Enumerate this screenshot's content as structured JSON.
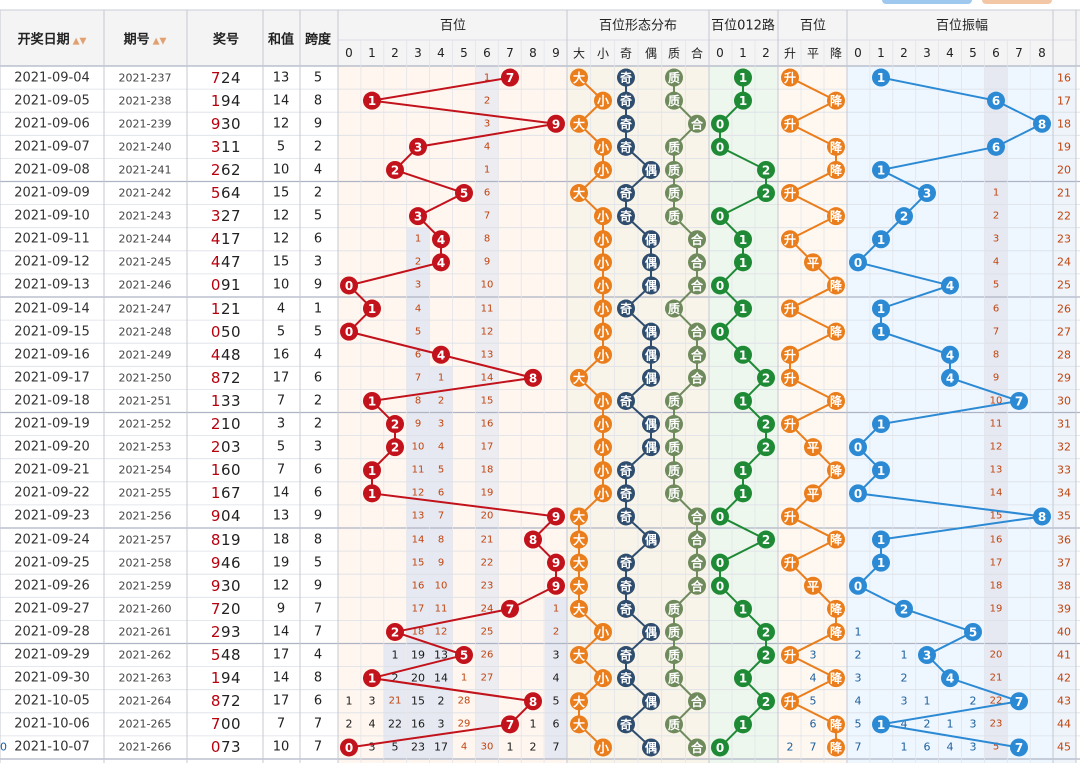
{
  "headers": {
    "date": "开奖日期",
    "issue": "期号",
    "prize": "奖号",
    "sum": "和值",
    "span": "跨度",
    "hundreds": "百位",
    "form": "百位形态分布",
    "road": "百位012路",
    "trend": "百位",
    "amp": "百位振幅"
  },
  "digits": [
    "0",
    "1",
    "2",
    "3",
    "4",
    "5",
    "6",
    "7",
    "8",
    "9"
  ],
  "form_labels": [
    "大",
    "小",
    "奇",
    "偶",
    "质",
    "合"
  ],
  "road_labels": [
    "0",
    "1",
    "2"
  ],
  "trend_labels": [
    "升",
    "平",
    "降"
  ],
  "colors": {
    "hundreds_ball": "#c2121b",
    "form_bigsmall": "#ea7d1c",
    "form_oddeven": "#2f4d6e",
    "form_primecomp": "#6f8a5c",
    "road_ball": "#1f8a35",
    "trend_ball": "#ea7d1c",
    "amp_ball": "#2c8ad4",
    "hundreds_bg": "#fff6ef",
    "form_bg": "#f9f4ea",
    "road_bg": "#eef7ee",
    "amp_bg": "#eef7ff"
  },
  "chart_data": {
    "type": "table",
    "rows": [
      {
        "date": "2021-09-04",
        "issue": "2021-237",
        "prize": "724",
        "sum": "13",
        "span": "5",
        "idx": "16"
      },
      {
        "date": "2021-09-05",
        "issue": "2021-238",
        "prize": "194",
        "sum": "14",
        "span": "8",
        "idx": "17"
      },
      {
        "date": "2021-09-06",
        "issue": "2021-239",
        "prize": "930",
        "sum": "12",
        "span": "9",
        "idx": "18"
      },
      {
        "date": "2021-09-07",
        "issue": "2021-240",
        "prize": "311",
        "sum": "5",
        "span": "2",
        "idx": "19"
      },
      {
        "date": "2021-09-08",
        "issue": "2021-241",
        "prize": "262",
        "sum": "10",
        "span": "4",
        "idx": "20"
      },
      {
        "date": "2021-09-09",
        "issue": "2021-242",
        "prize": "564",
        "sum": "15",
        "span": "2",
        "idx": "21"
      },
      {
        "date": "2021-09-10",
        "issue": "2021-243",
        "prize": "327",
        "sum": "12",
        "span": "5",
        "idx": "22"
      },
      {
        "date": "2021-09-11",
        "issue": "2021-244",
        "prize": "417",
        "sum": "12",
        "span": "6",
        "idx": "23"
      },
      {
        "date": "2021-09-12",
        "issue": "2021-245",
        "prize": "447",
        "sum": "15",
        "span": "3",
        "idx": "24"
      },
      {
        "date": "2021-09-13",
        "issue": "2021-246",
        "prize": "091",
        "sum": "10",
        "span": "9",
        "idx": "25"
      },
      {
        "date": "2021-09-14",
        "issue": "2021-247",
        "prize": "121",
        "sum": "4",
        "span": "1",
        "idx": "26"
      },
      {
        "date": "2021-09-15",
        "issue": "2021-248",
        "prize": "050",
        "sum": "5",
        "span": "5",
        "idx": "27"
      },
      {
        "date": "2021-09-16",
        "issue": "2021-249",
        "prize": "448",
        "sum": "16",
        "span": "4",
        "idx": "28"
      },
      {
        "date": "2021-09-17",
        "issue": "2021-250",
        "prize": "872",
        "sum": "17",
        "span": "6",
        "idx": "29"
      },
      {
        "date": "2021-09-18",
        "issue": "2021-251",
        "prize": "133",
        "sum": "7",
        "span": "2",
        "idx": "30"
      },
      {
        "date": "2021-09-19",
        "issue": "2021-252",
        "prize": "210",
        "sum": "3",
        "span": "2",
        "idx": "31"
      },
      {
        "date": "2021-09-20",
        "issue": "2021-253",
        "prize": "203",
        "sum": "5",
        "span": "3",
        "idx": "32"
      },
      {
        "date": "2021-09-21",
        "issue": "2021-254",
        "prize": "160",
        "sum": "7",
        "span": "6",
        "idx": "33"
      },
      {
        "date": "2021-09-22",
        "issue": "2021-255",
        "prize": "167",
        "sum": "14",
        "span": "6",
        "idx": "34"
      },
      {
        "date": "2021-09-23",
        "issue": "2021-256",
        "prize": "904",
        "sum": "13",
        "span": "9",
        "idx": "35"
      },
      {
        "date": "2021-09-24",
        "issue": "2021-257",
        "prize": "819",
        "sum": "18",
        "span": "8",
        "idx": "36"
      },
      {
        "date": "2021-09-25",
        "issue": "2021-258",
        "prize": "946",
        "sum": "19",
        "span": "5",
        "idx": "37"
      },
      {
        "date": "2021-09-26",
        "issue": "2021-259",
        "prize": "930",
        "sum": "12",
        "span": "9",
        "idx": "38"
      },
      {
        "date": "2021-09-27",
        "issue": "2021-260",
        "prize": "720",
        "sum": "9",
        "span": "7",
        "idx": "39"
      },
      {
        "date": "2021-09-28",
        "issue": "2021-261",
        "prize": "293",
        "sum": "14",
        "span": "7",
        "idx": "40"
      },
      {
        "date": "2021-09-29",
        "issue": "2021-262",
        "prize": "548",
        "sum": "17",
        "span": "4",
        "idx": "41"
      },
      {
        "date": "2021-09-30",
        "issue": "2021-263",
        "prize": "194",
        "sum": "14",
        "span": "8",
        "idx": "42"
      },
      {
        "date": "2021-10-05",
        "issue": "2021-264",
        "prize": "872",
        "sum": "17",
        "span": "6",
        "idx": "43"
      },
      {
        "date": "2021-10-06",
        "issue": "2021-265",
        "prize": "700",
        "sum": "7",
        "span": "7",
        "idx": "44"
      },
      {
        "date": "2021-10-07",
        "issue": "2021-266",
        "prize": "073",
        "sum": "10",
        "span": "7",
        "idx": "45"
      }
    ],
    "hundreds": [
      7,
      1,
      9,
      3,
      2,
      5,
      3,
      4,
      4,
      0,
      1,
      0,
      4,
      8,
      1,
      2,
      2,
      1,
      1,
      9,
      8,
      9,
      9,
      7,
      2,
      5,
      1,
      8,
      7,
      0
    ],
    "hundreds_miss": [
      [
        [
          6,
          "1"
        ]
      ],
      [
        [
          6,
          "2"
        ]
      ],
      [
        [
          6,
          "3"
        ]
      ],
      [
        [
          6,
          "4"
        ]
      ],
      [
        [
          6,
          "1"
        ]
      ],
      [
        [
          6,
          "6"
        ]
      ],
      [
        [
          6,
          "7"
        ]
      ],
      [
        [
          3,
          "1"
        ],
        [
          6,
          "8"
        ]
      ],
      [
        [
          3,
          "2"
        ],
        [
          6,
          "9"
        ]
      ],
      [
        [
          3,
          "3"
        ],
        [
          6,
          "10"
        ]
      ],
      [
        [
          3,
          "4"
        ],
        [
          6,
          "11"
        ]
      ],
      [
        [
          3,
          "5"
        ],
        [
          6,
          "12"
        ]
      ],
      [
        [
          3,
          "6"
        ],
        [
          6,
          "13"
        ]
      ],
      [
        [
          3,
          "7"
        ],
        [
          4,
          "1"
        ],
        [
          6,
          "14"
        ]
      ],
      [
        [
          3,
          "8"
        ],
        [
          4,
          "2"
        ],
        [
          6,
          "15"
        ]
      ],
      [
        [
          3,
          "9"
        ],
        [
          4,
          "3"
        ],
        [
          6,
          "16"
        ]
      ],
      [
        [
          3,
          "10"
        ],
        [
          4,
          "4"
        ],
        [
          6,
          "17"
        ]
      ],
      [
        [
          3,
          "11"
        ],
        [
          4,
          "5"
        ],
        [
          6,
          "18"
        ]
      ],
      [
        [
          3,
          "12"
        ],
        [
          4,
          "6"
        ],
        [
          6,
          "19"
        ]
      ],
      [
        [
          3,
          "13"
        ],
        [
          4,
          "7"
        ],
        [
          6,
          "20"
        ]
      ],
      [
        [
          3,
          "14"
        ],
        [
          4,
          "8"
        ],
        [
          6,
          "21"
        ]
      ],
      [
        [
          3,
          "15"
        ],
        [
          4,
          "9"
        ],
        [
          6,
          "22"
        ]
      ],
      [
        [
          3,
          "16"
        ],
        [
          4,
          "10"
        ],
        [
          6,
          "23"
        ]
      ],
      [
        [
          3,
          "17"
        ],
        [
          4,
          "11"
        ],
        [
          6,
          "24"
        ],
        [
          9,
          "1"
        ]
      ],
      [
        [
          3,
          "18"
        ],
        [
          4,
          "12"
        ],
        [
          6,
          "25"
        ],
        [
          9,
          "2"
        ]
      ],
      [
        [
          2,
          "1"
        ],
        [
          3,
          "19"
        ],
        [
          4,
          "13"
        ],
        [
          6,
          "26"
        ],
        [
          9,
          "3"
        ]
      ],
      [
        [
          2,
          "2"
        ],
        [
          3,
          "20"
        ],
        [
          4,
          "14"
        ],
        [
          5,
          "1"
        ],
        [
          6,
          "27"
        ],
        [
          9,
          "4"
        ]
      ],
      [
        [
          0,
          "1"
        ],
        [
          1,
          "3"
        ],
        [
          2,
          "21"
        ],
        [
          3,
          "15"
        ],
        [
          4,
          "2"
        ],
        [
          5,
          "28"
        ],
        [
          9,
          "5"
        ]
      ],
      [
        [
          0,
          "2"
        ],
        [
          1,
          "4"
        ],
        [
          2,
          "22"
        ],
        [
          3,
          "16"
        ],
        [
          4,
          "3"
        ],
        [
          5,
          "29"
        ],
        [
          8,
          "1"
        ],
        [
          9,
          "6"
        ]
      ],
      [
        [
          1,
          "3"
        ],
        [
          2,
          "5"
        ],
        [
          3,
          "23"
        ],
        [
          4,
          "17"
        ],
        [
          5,
          "4"
        ],
        [
          6,
          "30"
        ],
        [
          7,
          "1"
        ],
        [
          8,
          "2"
        ],
        [
          9,
          "7"
        ]
      ]
    ],
    "form_bigsmall": [
      "大",
      "小",
      "大",
      "小",
      "小",
      "大",
      "小",
      "小",
      "小",
      "小",
      "小",
      "小",
      "小",
      "大",
      "小",
      "小",
      "小",
      "小",
      "小",
      "大",
      "大",
      "大",
      "大",
      "大",
      "小",
      "大",
      "小",
      "大",
      "大",
      "小"
    ],
    "form_oddeven": [
      "奇",
      "奇",
      "奇",
      "奇",
      "偶",
      "奇",
      "奇",
      "偶",
      "偶",
      "偶",
      "奇",
      "偶",
      "偶",
      "偶",
      "奇",
      "偶",
      "偶",
      "奇",
      "奇",
      "奇",
      "偶",
      "奇",
      "奇",
      "奇",
      "偶",
      "奇",
      "奇",
      "偶",
      "奇",
      "偶"
    ],
    "form_primecomp": [
      "质",
      "质",
      "合",
      "质",
      "质",
      "质",
      "质",
      "合",
      "合",
      "合",
      "质",
      "合",
      "合",
      "合",
      "质",
      "质",
      "质",
      "质",
      "质",
      "合",
      "合",
      "合",
      "合",
      "质",
      "质",
      "质",
      "质",
      "合",
      "质",
      "合"
    ],
    "road": [
      1,
      1,
      0,
      0,
      2,
      2,
      0,
      1,
      1,
      0,
      1,
      0,
      1,
      2,
      1,
      2,
      2,
      1,
      1,
      0,
      2,
      0,
      0,
      1,
      2,
      2,
      1,
      2,
      1,
      0
    ],
    "trend": [
      "升",
      "降",
      "升",
      "降",
      "降",
      "升",
      "降",
      "升",
      "平",
      "降",
      "升",
      "降",
      "升",
      "升",
      "降",
      "升",
      "平",
      "降",
      "平",
      "升",
      "降",
      "升",
      "平",
      "降",
      "降",
      "升",
      "降",
      "升",
      "降",
      "降"
    ],
    "amp": [
      1,
      6,
      8,
      6,
      1,
      3,
      2,
      1,
      0,
      4,
      1,
      1,
      4,
      4,
      7,
      1,
      0,
      1,
      0,
      8,
      1,
      1,
      0,
      2,
      5,
      3,
      4,
      7,
      1,
      7
    ],
    "trend_miss": [
      [
        [
          1,
          "3"
        ]
      ],
      [
        [
          1,
          "4"
        ]
      ],
      [
        [
          1,
          "5"
        ]
      ],
      [
        [
          1,
          "6"
        ],
        [
          2,
          "1"
        ]
      ],
      [
        [
          0,
          "2"
        ],
        [
          1,
          "7"
        ],
        [
          2,
          "2"
        ]
      ]
    ],
    "amp_miss": {
      "24": [
        [
          0,
          "1"
        ]
      ],
      "25": [
        [
          0,
          "2"
        ],
        [
          2,
          "1"
        ],
        [
          6,
          "20"
        ]
      ],
      "26": [
        [
          0,
          "3"
        ],
        [
          2,
          "2"
        ],
        [
          4,
          "1"
        ],
        [
          6,
          "21"
        ]
      ],
      "27": [
        [
          0,
          "4"
        ],
        [
          2,
          "3"
        ],
        [
          3,
          "1"
        ],
        [
          5,
          "2"
        ],
        [
          6,
          "22"
        ]
      ],
      "28": [
        [
          0,
          "5"
        ],
        [
          2,
          "4"
        ],
        [
          3,
          "2"
        ],
        [
          4,
          "1"
        ],
        [
          5,
          "3"
        ],
        [
          6,
          "23"
        ]
      ],
      "29": [
        [
          0,
          "7"
        ],
        [
          2,
          "1"
        ],
        [
          3,
          "6"
        ],
        [
          4,
          "4"
        ],
        [
          5,
          "3"
        ],
        [
          6,
          "5"
        ],
        [
          7,
          "26"
        ],
        [
          9,
          "10"
        ]
      ]
    }
  }
}
